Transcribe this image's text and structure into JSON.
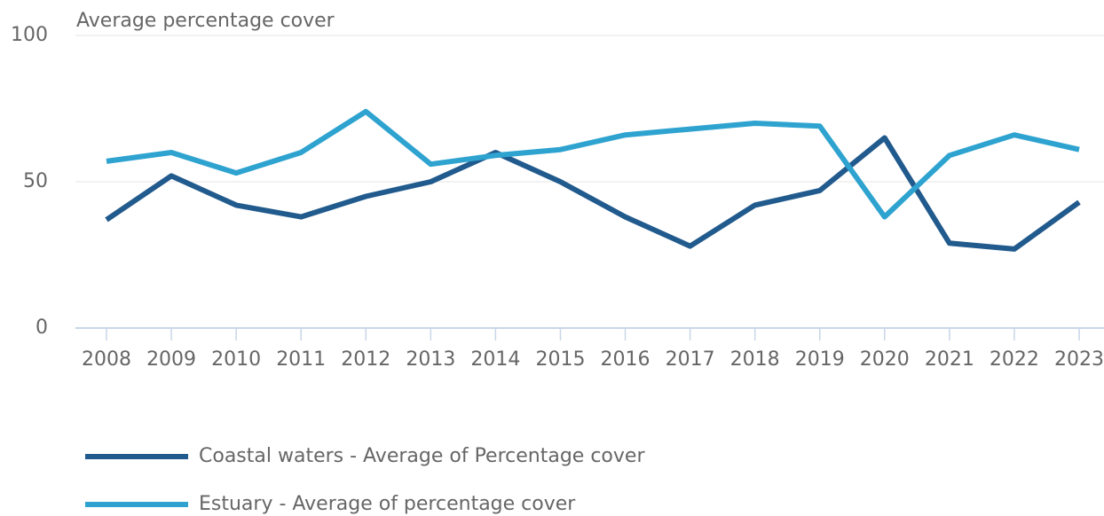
{
  "chart_data": {
    "type": "line",
    "y_label": "Average percentage cover",
    "categories": [
      "2008",
      "2009",
      "2010",
      "2011",
      "2012",
      "2013",
      "2014",
      "2015",
      "2016",
      "2017",
      "2018",
      "2019",
      "2020",
      "2021",
      "2022",
      "2023"
    ],
    "series": [
      {
        "name": "Coastal waters - Average of Percentage cover",
        "color": "#215a8d",
        "values": [
          37,
          52,
          42,
          38,
          45,
          50,
          60,
          50,
          38,
          28,
          42,
          47,
          65,
          29,
          27,
          43
        ]
      },
      {
        "name": "Estuary - Average of percentage cover",
        "color": "#2ea3d0",
        "values": [
          57,
          60,
          53,
          60,
          74,
          56,
          59,
          61,
          66,
          68,
          70,
          69,
          38,
          59,
          66,
          61
        ]
      }
    ],
    "ylim": [
      0,
      100
    ],
    "yticks": [
      0,
      50,
      100
    ],
    "grid": true,
    "legend": "bottom"
  }
}
